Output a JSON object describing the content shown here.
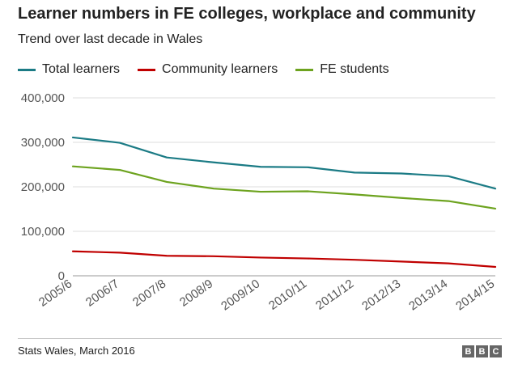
{
  "chart_data": {
    "type": "line",
    "title": "Learner numbers in FE colleges, workplace and community",
    "subtitle": "Trend over last decade in Wales",
    "categories": [
      "2005/6",
      "2006/7",
      "2007/8",
      "2008/9",
      "2009/10",
      "2010/11",
      "2011/12",
      "2012/13",
      "2013/14",
      "2014/15"
    ],
    "series": [
      {
        "name": "Total learners",
        "color": "#1b7b85",
        "values": [
          311000,
          299000,
          266000,
          255000,
          245000,
          244000,
          232000,
          230000,
          224000,
          196000
        ]
      },
      {
        "name": "Community learners",
        "color": "#c00000",
        "values": [
          55000,
          52000,
          45000,
          44000,
          41000,
          39000,
          36000,
          32000,
          28000,
          20000
        ]
      },
      {
        "name": "FE students",
        "color": "#6da31f",
        "values": [
          246000,
          238000,
          211000,
          196000,
          189000,
          190000,
          183000,
          175000,
          168000,
          151000
        ]
      }
    ],
    "yticks": [
      "400,000",
      "300,000",
      "200,000",
      "100,000",
      "0"
    ],
    "ytick_values": [
      400000,
      300000,
      200000,
      100000,
      0
    ],
    "ylim": [
      0,
      400000
    ],
    "grid": true,
    "legend": "top-left"
  },
  "source": "Stats Wales, March 2016",
  "logo": {
    "letters": [
      "B",
      "B",
      "C"
    ]
  }
}
